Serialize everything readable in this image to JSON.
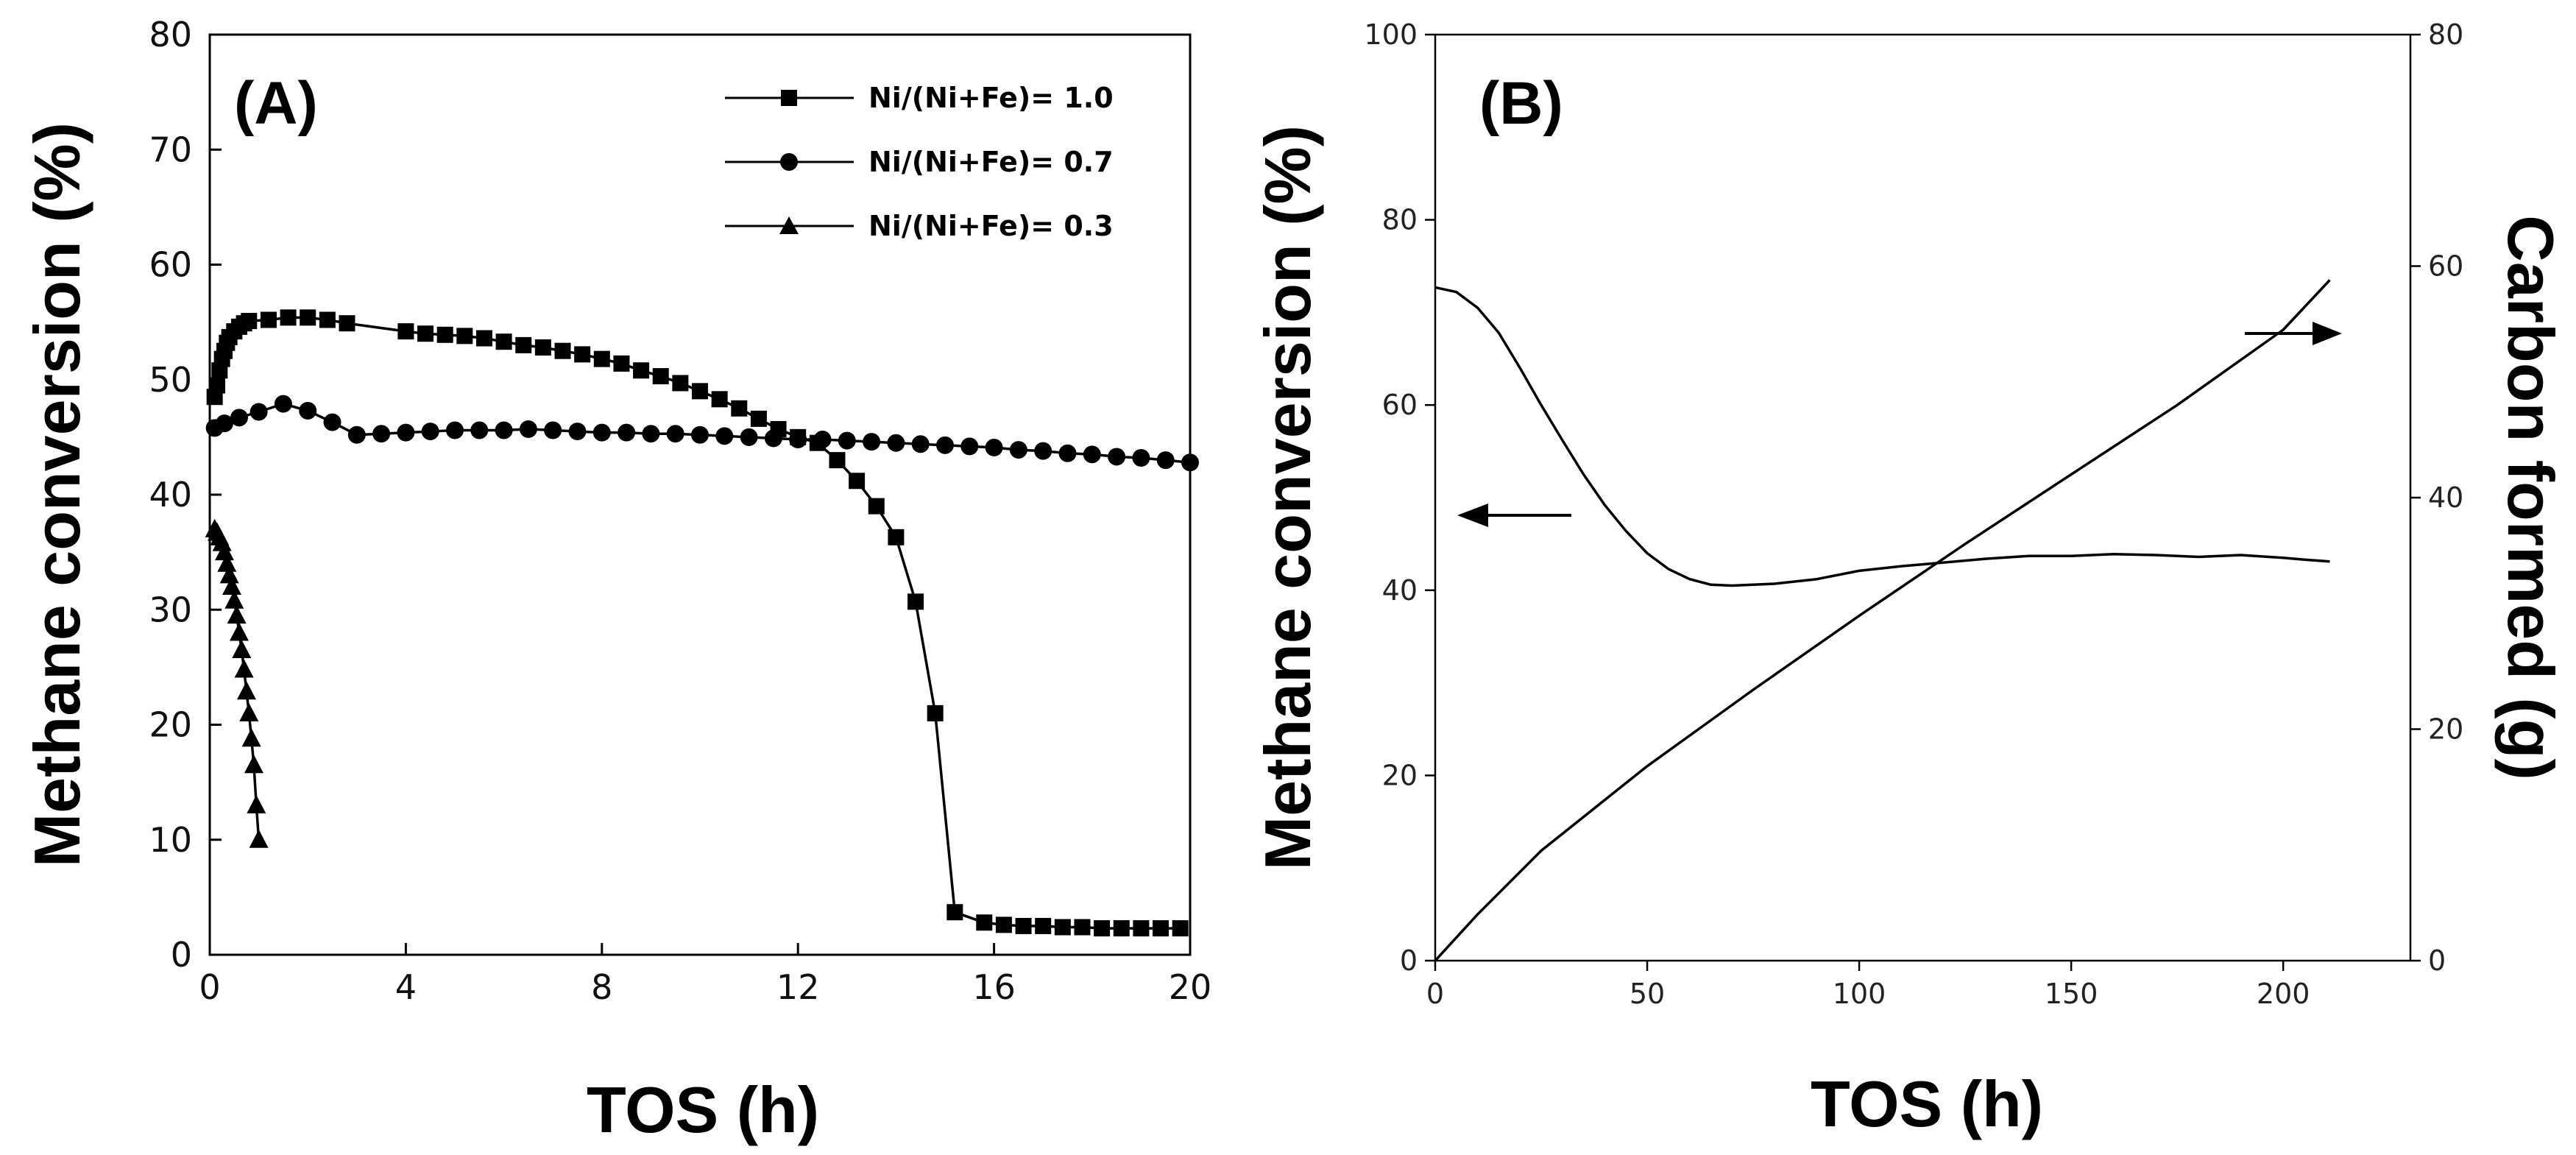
{
  "chart_data": [
    {
      "panel": "(A)",
      "type": "line",
      "xlabel": "TOS (h)",
      "ylabel": "Methane conversion (%)",
      "xlim": [
        0,
        20
      ],
      "ylim": [
        0,
        80
      ],
      "xticks": [
        "0",
        "4",
        "8",
        "12",
        "16",
        "20"
      ],
      "yticks": [
        "0",
        "10",
        "20",
        "30",
        "40",
        "50",
        "60",
        "70",
        "80"
      ],
      "legend_position": "top-right",
      "series": [
        {
          "name": "Ni/(Ni+Fe)= 1.0",
          "marker": "square",
          "x": [
            0.1,
            0.15,
            0.2,
            0.25,
            0.3,
            0.35,
            0.4,
            0.5,
            0.6,
            0.7,
            0.8,
            1.2,
            1.6,
            2.0,
            2.4,
            2.8,
            4.0,
            4.4,
            4.8,
            5.2,
            5.6,
            6.0,
            6.4,
            6.8,
            7.2,
            7.6,
            8.0,
            8.4,
            8.8,
            9.2,
            9.6,
            10.0,
            10.4,
            10.8,
            11.2,
            11.6,
            12.0,
            12.4,
            12.8,
            13.2,
            13.6,
            14.0,
            14.4,
            14.8,
            15.2,
            15.8,
            16.2,
            16.6,
            17.0,
            17.4,
            17.8,
            18.2,
            18.6,
            19.0,
            19.4,
            19.8
          ],
          "y": [
            48.5,
            49.5,
            50.8,
            51.8,
            52.5,
            53.2,
            53.7,
            54.2,
            54.6,
            54.9,
            55.1,
            55.2,
            55.4,
            55.4,
            55.2,
            54.9,
            54.2,
            54.0,
            53.9,
            53.8,
            53.6,
            53.3,
            53.0,
            52.8,
            52.5,
            52.2,
            51.8,
            51.4,
            50.8,
            50.3,
            49.7,
            49.0,
            48.3,
            47.5,
            46.6,
            45.7,
            45.0,
            44.5,
            43.0,
            41.2,
            39.0,
            36.3,
            30.7,
            21.0,
            3.7,
            2.8,
            2.6,
            2.5,
            2.5,
            2.4,
            2.4,
            2.3,
            2.3,
            2.3,
            2.3,
            2.3
          ]
        },
        {
          "name": "Ni/(Ni+Fe)= 0.7",
          "marker": "circle",
          "x": [
            0.1,
            0.3,
            0.6,
            1.0,
            1.5,
            2.0,
            2.5,
            3.0,
            3.5,
            4.0,
            4.5,
            5.0,
            5.5,
            6.0,
            6.5,
            7.0,
            7.5,
            8.0,
            8.5,
            9.0,
            9.5,
            10.0,
            10.5,
            11.0,
            11.5,
            12.0,
            12.5,
            13.0,
            13.5,
            14.0,
            14.5,
            15.0,
            15.5,
            16.0,
            16.5,
            17.0,
            17.5,
            18.0,
            18.5,
            19.0,
            19.5,
            20.0
          ],
          "y": [
            45.8,
            46.2,
            46.7,
            47.2,
            47.9,
            47.3,
            46.3,
            45.2,
            45.3,
            45.4,
            45.5,
            45.6,
            45.6,
            45.6,
            45.7,
            45.6,
            45.5,
            45.4,
            45.4,
            45.3,
            45.3,
            45.2,
            45.1,
            45.0,
            44.9,
            44.8,
            44.8,
            44.7,
            44.6,
            44.5,
            44.4,
            44.3,
            44.2,
            44.1,
            43.9,
            43.8,
            43.6,
            43.5,
            43.3,
            43.2,
            43.0,
            42.8
          ]
        },
        {
          "name": "Ni/(Ni+Fe)= 0.3",
          "marker": "triangle",
          "x": [
            0.1,
            0.15,
            0.2,
            0.25,
            0.3,
            0.35,
            0.4,
            0.45,
            0.5,
            0.55,
            0.6,
            0.65,
            0.7,
            0.75,
            0.8,
            0.85,
            0.9,
            0.95,
            1.0
          ],
          "y": [
            37.0,
            36.7,
            36.3,
            35.8,
            35.0,
            34.0,
            33.0,
            32.0,
            30.8,
            29.5,
            28.0,
            26.5,
            24.8,
            22.9,
            21.0,
            18.8,
            16.5,
            13.0,
            10.0
          ]
        }
      ]
    },
    {
      "panel": "(B)",
      "type": "line",
      "xlabel": "TOS (h)",
      "ylabel": "Methane conversion (%)",
      "ylabel_right": "Carbon formed (g)",
      "xlim": [
        0,
        230
      ],
      "ylim": [
        0,
        100
      ],
      "ylim_right": [
        0,
        80
      ],
      "xticks": [
        "0",
        "50",
        "100",
        "150",
        "200"
      ],
      "yticks": [
        "0",
        "20",
        "40",
        "60",
        "80",
        "100"
      ],
      "yticks_right": [
        "0",
        "20",
        "40",
        "60",
        "80"
      ],
      "series": [
        {
          "name": "Methane conversion",
          "axis": "left",
          "x": [
            0,
            5,
            10,
            15,
            20,
            25,
            30,
            35,
            40,
            45,
            50,
            55,
            60,
            65,
            70,
            80,
            90,
            100,
            110,
            120,
            130,
            140,
            150,
            160,
            170,
            180,
            190,
            200,
            205,
            211
          ],
          "y": [
            72.7,
            72.2,
            70.5,
            67.8,
            64.0,
            60.0,
            56.2,
            52.5,
            49.2,
            46.4,
            44.0,
            42.3,
            41.2,
            40.6,
            40.5,
            40.7,
            41.2,
            42.1,
            42.6,
            43.0,
            43.4,
            43.7,
            43.7,
            43.9,
            43.8,
            43.6,
            43.8,
            43.5,
            43.3,
            43.1
          ]
        },
        {
          "name": "Carbon formed",
          "axis": "right",
          "x": [
            0,
            10,
            25,
            50,
            75,
            100,
            125,
            150,
            175,
            200,
            211
          ],
          "y": [
            0,
            4,
            9.5,
            16.8,
            23.4,
            29.8,
            36.0,
            42.0,
            48.0,
            54.5,
            58.8
          ]
        }
      ]
    }
  ]
}
